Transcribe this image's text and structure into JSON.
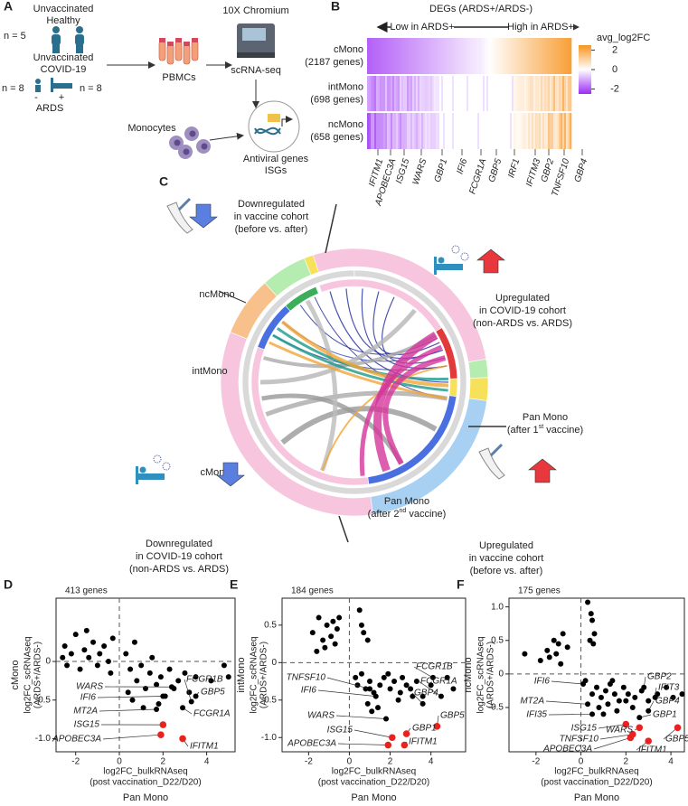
{
  "panel_a": {
    "label": "A",
    "healthy": [
      "Unvaccinated",
      "Healthy"
    ],
    "healthy_n": "n = 5",
    "covid": [
      "Unvaccinated",
      "COVID-19"
    ],
    "covid_n_minus": "n = 8",
    "covid_n_plus": "n = 8",
    "minus": "-",
    "plus": "+",
    "ards": "ARDS",
    "pbmcs": "PBMCs",
    "platform": "10X Chromium",
    "assay": "scRNA-seq",
    "cells": "Monocytes",
    "genes": [
      "Antiviral genes",
      "ISGs"
    ]
  },
  "panel_b": {
    "label": "B",
    "title": "DEGs (ARDS+/ARDS-)",
    "low": "Low in ARDS+",
    "high": "High in ARDS+",
    "rows": [
      {
        "name": "cMono",
        "count": "(2187 genes)"
      },
      {
        "name": "intMono",
        "count": "(698 genes)"
      },
      {
        "name": "ncMono",
        "count": "(658 genes)"
      }
    ],
    "genes": [
      "IFITM1",
      "APOBEC3A",
      "ISG15",
      "WARS",
      "GBP1",
      "IFI6",
      "FCGR1A",
      "GBP5",
      "IRF1",
      "IFITM3",
      "GBP2",
      "TNFSF10",
      "GBP4"
    ],
    "colorbar": {
      "title": "avg_log2FC",
      "clim": [
        -2.5,
        2.5
      ],
      "ticks": [
        2,
        0,
        -2
      ],
      "low_color": "#9b2cf5",
      "mid_color": "#ffffff",
      "high_color": "#f7931e"
    }
  },
  "panel_c": {
    "label": "C",
    "segments": [
      "ncMono",
      "intMono",
      "cMono"
    ],
    "pan1": {
      "name": "Pan Mono",
      "prefix": "(after 1",
      "sup": "st",
      "suffix": " vaccine)"
    },
    "pan2": {
      "name": "Pan Mono",
      "prefix": "(after 2",
      "sup": "nd",
      "suffix": " vaccine)"
    },
    "down_vaccine": [
      "Downregulated",
      "in vaccine cohort",
      "(before vs. after)"
    ],
    "up_covid": [
      "Upregulated",
      "in COVID-19 cohort",
      "(non-ARDS vs. ARDS)"
    ],
    "down_covid": [
      "Downregulated",
      "in COVID-19 cohort",
      "(non-ARDS vs. ARDS)"
    ],
    "up_vaccine": [
      "Upregulated",
      "in vaccine cohort",
      "(before vs. after)"
    ]
  },
  "scatter_panels": [
    {
      "type": "scatter",
      "label": "D",
      "count": "413 genes",
      "ylabel": [
        "cMono",
        "log2FC_scRNAseq",
        "(ARDS+/ARDS-)"
      ],
      "xlabel": [
        "log2FC_bulkRNAseq",
        "(post vaccination_D22/D20)"
      ],
      "subset": "Pan Mono",
      "xlim": [
        -2.9,
        5.3
      ],
      "ylim": [
        -1.17,
        0.82
      ],
      "xticks": [
        -2,
        0,
        2,
        4
      ],
      "yticks": [
        {
          "value": -1,
          "label": "-1.0"
        },
        -0.5,
        0
      ],
      "color": "#000000",
      "highlight_color": "#e8231f",
      "x": [
        -2.6,
        -2.4,
        -2.5,
        -2.2,
        -1.8,
        -1.6,
        -1.4,
        -1.2,
        -1.0,
        -0.9,
        -0.7,
        -0.5,
        -0.4,
        -0.3,
        0.3,
        0.5,
        0.7,
        0.8,
        1.0,
        1.2,
        1.4,
        1.5,
        1.7,
        1.9,
        2.1,
        2.3,
        2.5,
        2.7,
        3.0,
        3.2,
        3.5,
        4.2,
        4.8,
        5.0,
        0.6,
        1.1,
        1.8,
        -1.5,
        -2.0,
        0.4
      ],
      "y": [
        0.05,
        -0.05,
        0.2,
        0.1,
        -0.1,
        0.15,
        0.05,
        0.25,
        -0.05,
        0.1,
        0.2,
        0.0,
        -0.15,
        0.3,
        0.1,
        -0.1,
        0.25,
        -0.25,
        -0.05,
        -0.35,
        -0.15,
        0.05,
        -0.3,
        -0.2,
        -0.45,
        -0.1,
        -0.35,
        -0.25,
        -0.15,
        -0.4,
        -0.2,
        -0.25,
        -0.05,
        -0.2,
        -0.5,
        -0.6,
        -0.55,
        0.4,
        0.35,
        -0.4
      ],
      "genes": [
        {
          "name": "WARS",
          "x": 2.4,
          "y": -0.33,
          "highlight": false
        },
        {
          "name": "IFI6",
          "x": 2.0,
          "y": -0.45,
          "highlight": false
        },
        {
          "name": "MT2A",
          "x": 1.7,
          "y": -0.62,
          "highlight": false
        },
        {
          "name": "ISG15",
          "x": 2.0,
          "y": -0.82,
          "highlight": true
        },
        {
          "name": "APOBEC3A",
          "x": 1.9,
          "y": -0.95,
          "highlight": true
        },
        {
          "name": "FCGR1B",
          "x": 3.3,
          "y": -0.52,
          "highlight": false
        },
        {
          "name": "GBP5",
          "x": 3.5,
          "y": -0.45,
          "highlight": false
        },
        {
          "name": "FCGR1A",
          "x": 2.9,
          "y": -0.6,
          "highlight": false
        },
        {
          "name": "IFITM1",
          "x": 2.9,
          "y": -1.0,
          "highlight": true
        }
      ]
    },
    {
      "type": "scatter",
      "label": "E",
      "count": "184 genes",
      "ylabel": [
        "intMono",
        "log2FC_scRNAseq",
        "(ARDS+/ARDS-)"
      ],
      "xlabel": [
        "log2FC_bulkRNAseq",
        "(post vaccination_D22/D20)"
      ],
      "subset": "Pan Mono",
      "xlim": [
        -3.3,
        5.7
      ],
      "ylim": [
        -1.19,
        0.86
      ],
      "xticks": [
        -2,
        0,
        2,
        4
      ],
      "yticks": [
        {
          "value": -1,
          "label": "-1.0"
        },
        -0.5,
        0,
        0.5
      ],
      "color": "#000000",
      "highlight_color": "#e8231f",
      "x": [
        -1.8,
        -1.5,
        -1.3,
        -1.1,
        -0.9,
        -0.7,
        -0.6,
        -1.2,
        -0.8,
        0.5,
        0.7,
        0.9,
        0.3,
        0.4,
        0.6,
        0.8,
        1.0,
        1.2,
        1.5,
        1.7,
        2.0,
        2.2,
        2.5,
        2.8,
        3.0,
        3.3,
        3.6,
        4.0,
        4.8,
        5.1,
        0.9,
        1.4,
        2.4,
        3.1,
        -1.6,
        -0.5,
        0.6,
        1.9,
        2.6,
        1.1
      ],
      "y": [
        0.4,
        0.6,
        0.3,
        0.5,
        0.35,
        0.25,
        0.45,
        0.2,
        0.55,
        0.7,
        0.4,
        0.3,
        -0.2,
        -0.3,
        -0.15,
        -0.35,
        -0.25,
        -0.4,
        -0.3,
        -0.2,
        -0.35,
        -0.25,
        -0.4,
        -0.3,
        -0.35,
        -0.25,
        -0.45,
        -0.3,
        -0.2,
        -0.35,
        -0.55,
        -0.6,
        -0.5,
        -0.45,
        0.15,
        0.6,
        0.5,
        -0.15,
        -0.2,
        -0.65
      ],
      "genes": [
        {
          "name": "TNFSF10",
          "x": 1.0,
          "y": -0.35,
          "highlight": false
        },
        {
          "name": "IFI6",
          "x": 1.3,
          "y": -0.45,
          "highlight": false
        },
        {
          "name": "WARS",
          "x": 1.8,
          "y": -0.75,
          "highlight": false
        },
        {
          "name": "ISG15",
          "x": 2.1,
          "y": -1.0,
          "highlight": true
        },
        {
          "name": "APOBEC3A",
          "x": 1.9,
          "y": -1.1,
          "highlight": true
        },
        {
          "name": "FCGR1B",
          "x": 4.1,
          "y": -0.2,
          "highlight": false
        },
        {
          "name": "FCGR1A",
          "x": 4.5,
          "y": -0.45,
          "highlight": false
        },
        {
          "name": "GBP4",
          "x": 3.6,
          "y": -0.55,
          "highlight": false
        },
        {
          "name": "GBP5",
          "x": 4.3,
          "y": -0.85,
          "highlight": true
        },
        {
          "name": "GBP1",
          "x": 2.8,
          "y": -0.95,
          "highlight": true
        },
        {
          "name": "IFITM1",
          "x": 2.7,
          "y": -1.1,
          "highlight": true
        }
      ]
    },
    {
      "type": "scatter",
      "label": "F",
      "count": "175 genes",
      "ylabel": [
        "ncMono",
        "log2FC_scRNAseq",
        "(ARDS+/ARDS-)"
      ],
      "xlabel": [
        "log2FC_bulkRNAseq",
        "(post vaccination_D22/D20)"
      ],
      "subset": "Pan Mono",
      "xlim": [
        -3.2,
        4.6
      ],
      "ylim": [
        -1.16,
        1.13
      ],
      "xticks": [
        -2,
        0,
        2,
        4
      ],
      "yticks": [
        -0.5,
        0,
        0.5,
        {
          "value": 1,
          "label": "1.0"
        }
      ],
      "color": "#000000",
      "highlight_color": "#e8231f",
      "x": [
        -2.5,
        -1.8,
        -1.5,
        -1.2,
        -1.0,
        -0.8,
        -1.4,
        -0.6,
        0.3,
        0.5,
        0.6,
        0.4,
        0.2,
        0.5,
        0.7,
        0.9,
        1.1,
        1.3,
        1.5,
        1.7,
        1.9,
        2.1,
        2.4,
        2.7,
        3.0,
        3.4,
        3.8,
        4.1,
        4.5,
        0.8,
        1.2,
        1.6,
        2.0,
        2.3,
        -1.1,
        -0.9,
        0.45,
        0.55,
        1.0,
        1.4
      ],
      "y": [
        0.3,
        0.2,
        0.35,
        0.5,
        0.45,
        0.6,
        0.25,
        0.4,
        1.07,
        0.8,
        0.6,
        0.5,
        -0.1,
        -0.3,
        -0.2,
        -0.35,
        -0.25,
        -0.15,
        -0.3,
        -0.4,
        -0.2,
        -0.3,
        -0.35,
        -0.25,
        -0.4,
        -0.3,
        -0.2,
        -0.35,
        -0.3,
        -0.5,
        -0.45,
        -0.55,
        -0.4,
        -0.5,
        0.3,
        0.15,
        0.9,
        0.45,
        -0.6,
        -0.1
      ],
      "genes": [
        {
          "name": "IFI6",
          "x": 0.1,
          "y": -0.15,
          "highlight": false
        },
        {
          "name": "MT2A",
          "x": 0.3,
          "y": -0.45,
          "highlight": false
        },
        {
          "name": "IFI35",
          "x": 0.5,
          "y": -0.6,
          "highlight": false
        },
        {
          "name": "ISG15",
          "x": 2.0,
          "y": -0.75,
          "highlight": true
        },
        {
          "name": "TNFSF10",
          "x": 2.3,
          "y": -0.9,
          "highlight": true
        },
        {
          "name": "APOBEC3A",
          "x": 2.2,
          "y": -0.95,
          "highlight": true
        },
        {
          "name": "GBP2",
          "x": 2.8,
          "y": -0.2,
          "highlight": false
        },
        {
          "name": "IFIT3",
          "x": 3.3,
          "y": -0.35,
          "highlight": false
        },
        {
          "name": "GBP4",
          "x": 3.0,
          "y": -0.55,
          "highlight": false
        },
        {
          "name": "GBP1",
          "x": 2.6,
          "y": -0.65,
          "highlight": false
        },
        {
          "name": "WARS",
          "x": 2.6,
          "y": -0.8,
          "highlight": true
        },
        {
          "name": "GBP5",
          "x": 4.3,
          "y": -0.8,
          "highlight": true
        },
        {
          "name": "IFITM1",
          "x": 3.0,
          "y": -1.0,
          "highlight": true
        }
      ]
    }
  ]
}
